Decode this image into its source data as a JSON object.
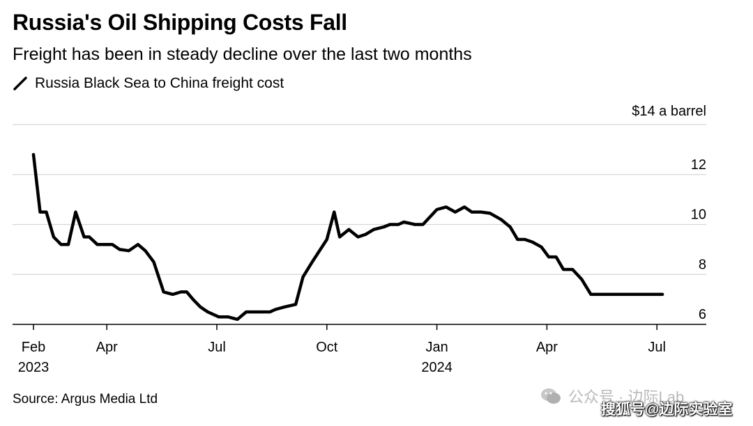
{
  "header": {
    "title": "Russia's Oil Shipping Costs Fall",
    "subtitle": "Freight has been in steady decline over the last two months"
  },
  "footer": {
    "source": "Source: Argus Media Ltd",
    "watermark_official": "公众号 · 边际Lab",
    "watermark_sohu": "搜狐号@边际实验室"
  },
  "chart_data": {
    "type": "line",
    "title": "Russia's Oil Shipping Costs Fall",
    "subtitle": "Freight has been in steady decline over the last two months",
    "legend": [
      "Russia Black Sea to China freight cost"
    ],
    "ylabel": "$14 a barrel",
    "ylim": [
      6,
      14
    ],
    "yticks": [
      6,
      8,
      10,
      12,
      14
    ],
    "ytick_labels": [
      "6",
      "8",
      "10",
      "12",
      "$14 a barrel"
    ],
    "grid": true,
    "x_axis": {
      "start": "2023-02-01",
      "ticks": [
        {
          "label": "Feb",
          "sub": "2023",
          "month": 0
        },
        {
          "label": "Apr",
          "sub": "",
          "month": 2
        },
        {
          "label": "Jul",
          "sub": "",
          "month": 5
        },
        {
          "label": "Oct",
          "sub": "",
          "month": 8
        },
        {
          "label": "Jan",
          "sub": "2024",
          "month": 11
        },
        {
          "label": "Apr",
          "sub": "",
          "month": 14
        },
        {
          "label": "Jul",
          "sub": "",
          "month": 17
        }
      ]
    },
    "series": [
      {
        "name": "Russia Black Sea to China freight cost",
        "color": "#000000",
        "x_months": [
          0,
          0.18,
          0.35,
          0.55,
          0.75,
          0.95,
          1.15,
          1.38,
          1.52,
          1.74,
          1.94,
          2.15,
          2.35,
          2.6,
          2.85,
          3.05,
          3.28,
          3.55,
          3.8,
          4.02,
          4.18,
          4.35,
          4.55,
          4.75,
          5.05,
          5.3,
          5.56,
          5.8,
          6.0,
          6.25,
          6.45,
          6.6,
          6.85,
          7.15,
          7.35,
          7.6,
          8.0,
          8.2,
          8.35,
          8.6,
          8.85,
          9.05,
          9.28,
          9.55,
          9.72,
          9.95,
          10.1,
          10.4,
          10.62,
          11.0,
          11.25,
          11.5,
          11.75,
          11.95,
          12.2,
          12.45,
          12.75,
          13.0,
          13.2,
          13.4,
          13.6,
          13.85,
          14.05,
          14.25,
          14.45,
          14.7,
          14.95,
          15.2,
          15.4,
          15.65,
          15.88,
          16.05,
          16.25,
          16.55,
          16.8,
          17.0,
          17.15
        ],
        "values": [
          12.8,
          10.5,
          10.5,
          9.5,
          9.2,
          9.2,
          10.5,
          9.5,
          9.5,
          9.2,
          9.2,
          9.2,
          9.0,
          8.95,
          9.2,
          8.95,
          8.5,
          7.3,
          7.2,
          7.3,
          7.3,
          7.0,
          6.7,
          6.5,
          6.3,
          6.3,
          6.2,
          6.5,
          6.5,
          6.5,
          6.5,
          6.6,
          6.7,
          6.8,
          7.9,
          8.5,
          9.4,
          10.5,
          9.5,
          9.8,
          9.5,
          9.6,
          9.8,
          9.9,
          10.0,
          10.0,
          10.1,
          10.0,
          10.0,
          10.6,
          10.7,
          10.5,
          10.7,
          10.5,
          10.5,
          10.45,
          10.2,
          9.9,
          9.4,
          9.4,
          9.3,
          9.1,
          8.7,
          8.7,
          8.2,
          8.2,
          7.8,
          7.2,
          7.2,
          7.2,
          7.2,
          7.2,
          7.2,
          7.2,
          7.2,
          7.2,
          7.2
        ]
      }
    ]
  }
}
